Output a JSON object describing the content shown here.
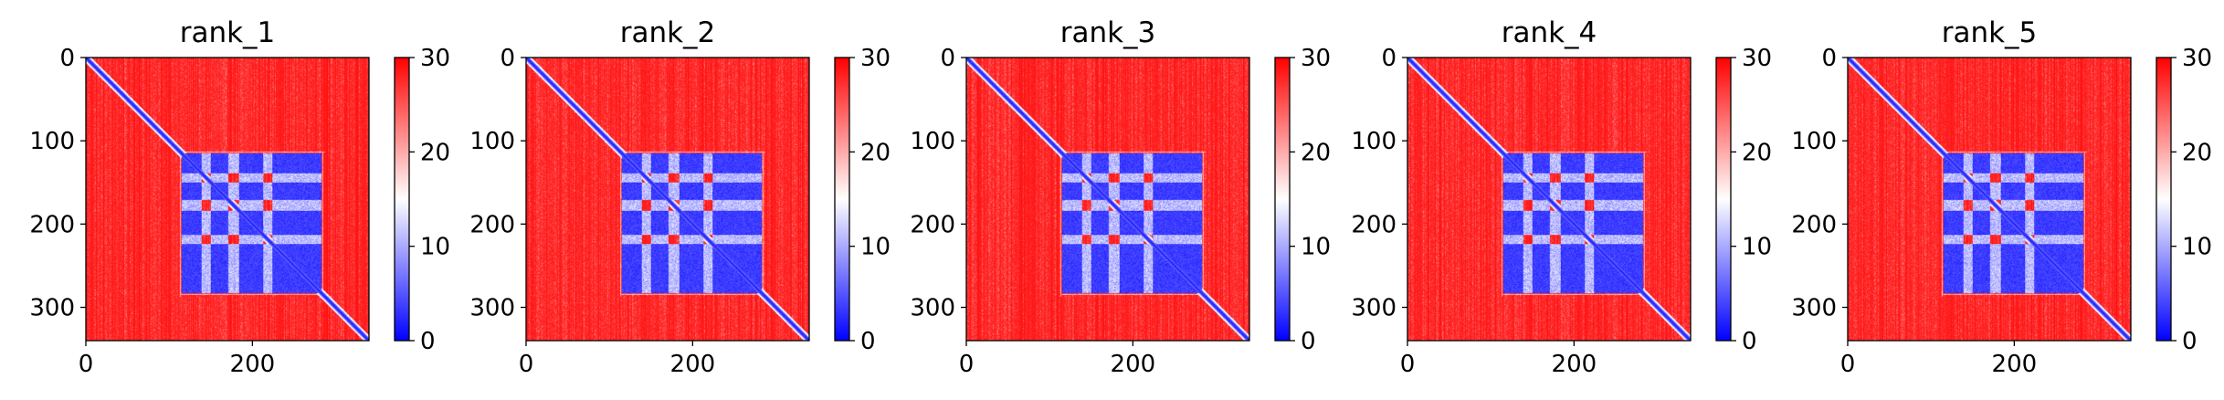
{
  "chart_data": [
    {
      "type": "heatmap",
      "title": "rank_1",
      "xlabel": "",
      "ylabel": "",
      "matrix_size": 340,
      "xlim": [
        0,
        340
      ],
      "ylim": [
        340,
        0
      ],
      "xticks": [
        0,
        200
      ],
      "yticks": [
        0,
        100,
        200,
        300
      ],
      "colorbar": {
        "colormap": "bwr",
        "range": [
          0,
          30
        ],
        "ticks": [
          0,
          10,
          20,
          30
        ]
      },
      "colors": {
        "low": "#0000ff",
        "mid": "#ffffff",
        "high": "#ff0000"
      },
      "blocks": {
        "structured_region": [
          115,
          285
        ],
        "low_value_value": 2,
        "background_value": 29,
        "diagonal_value": 1
      }
    },
    {
      "type": "heatmap",
      "title": "rank_2",
      "xlabel": "",
      "ylabel": "",
      "matrix_size": 340,
      "xlim": [
        0,
        340
      ],
      "ylim": [
        340,
        0
      ],
      "xticks": [
        0,
        200
      ],
      "yticks": [
        0,
        100,
        200,
        300
      ],
      "colorbar": {
        "colormap": "bwr",
        "range": [
          0,
          30
        ],
        "ticks": [
          0,
          10,
          20,
          30
        ]
      },
      "colors": {
        "low": "#0000ff",
        "mid": "#ffffff",
        "high": "#ff0000"
      },
      "blocks": {
        "structured_region": [
          115,
          285
        ],
        "low_value_value": 2,
        "background_value": 29,
        "diagonal_value": 1
      }
    },
    {
      "type": "heatmap",
      "title": "rank_3",
      "xlabel": "",
      "ylabel": "",
      "matrix_size": 340,
      "xlim": [
        0,
        340
      ],
      "ylim": [
        340,
        0
      ],
      "xticks": [
        0,
        200
      ],
      "yticks": [
        0,
        100,
        200,
        300
      ],
      "colorbar": {
        "colormap": "bwr",
        "range": [
          0,
          30
        ],
        "ticks": [
          0,
          10,
          20,
          30
        ]
      },
      "colors": {
        "low": "#0000ff",
        "mid": "#ffffff",
        "high": "#ff0000"
      },
      "blocks": {
        "structured_region": [
          115,
          285
        ],
        "low_value_value": 2,
        "background_value": 29,
        "diagonal_value": 1
      }
    },
    {
      "type": "heatmap",
      "title": "rank_4",
      "xlabel": "",
      "ylabel": "",
      "matrix_size": 340,
      "xlim": [
        0,
        340
      ],
      "ylim": [
        340,
        0
      ],
      "xticks": [
        0,
        200
      ],
      "yticks": [
        0,
        100,
        200,
        300
      ],
      "colorbar": {
        "colormap": "bwr",
        "range": [
          0,
          30
        ],
        "ticks": [
          0,
          10,
          20,
          30
        ]
      },
      "colors": {
        "low": "#0000ff",
        "mid": "#ffffff",
        "high": "#ff0000"
      },
      "blocks": {
        "structured_region": [
          115,
          285
        ],
        "low_value_value": 2,
        "background_value": 29,
        "diagonal_value": 1
      }
    },
    {
      "type": "heatmap",
      "title": "rank_5",
      "xlabel": "",
      "ylabel": "",
      "matrix_size": 340,
      "xlim": [
        0,
        340
      ],
      "ylim": [
        340,
        0
      ],
      "xticks": [
        0,
        200
      ],
      "yticks": [
        0,
        100,
        200,
        300
      ],
      "colorbar": {
        "colormap": "bwr",
        "range": [
          0,
          30
        ],
        "ticks": [
          0,
          10,
          20,
          30
        ]
      },
      "colors": {
        "low": "#0000ff",
        "mid": "#ffffff",
        "high": "#ff0000"
      },
      "blocks": {
        "structured_region": [
          115,
          285
        ],
        "low_value_value": 2,
        "background_value": 29,
        "diagonal_value": 1
      }
    }
  ]
}
